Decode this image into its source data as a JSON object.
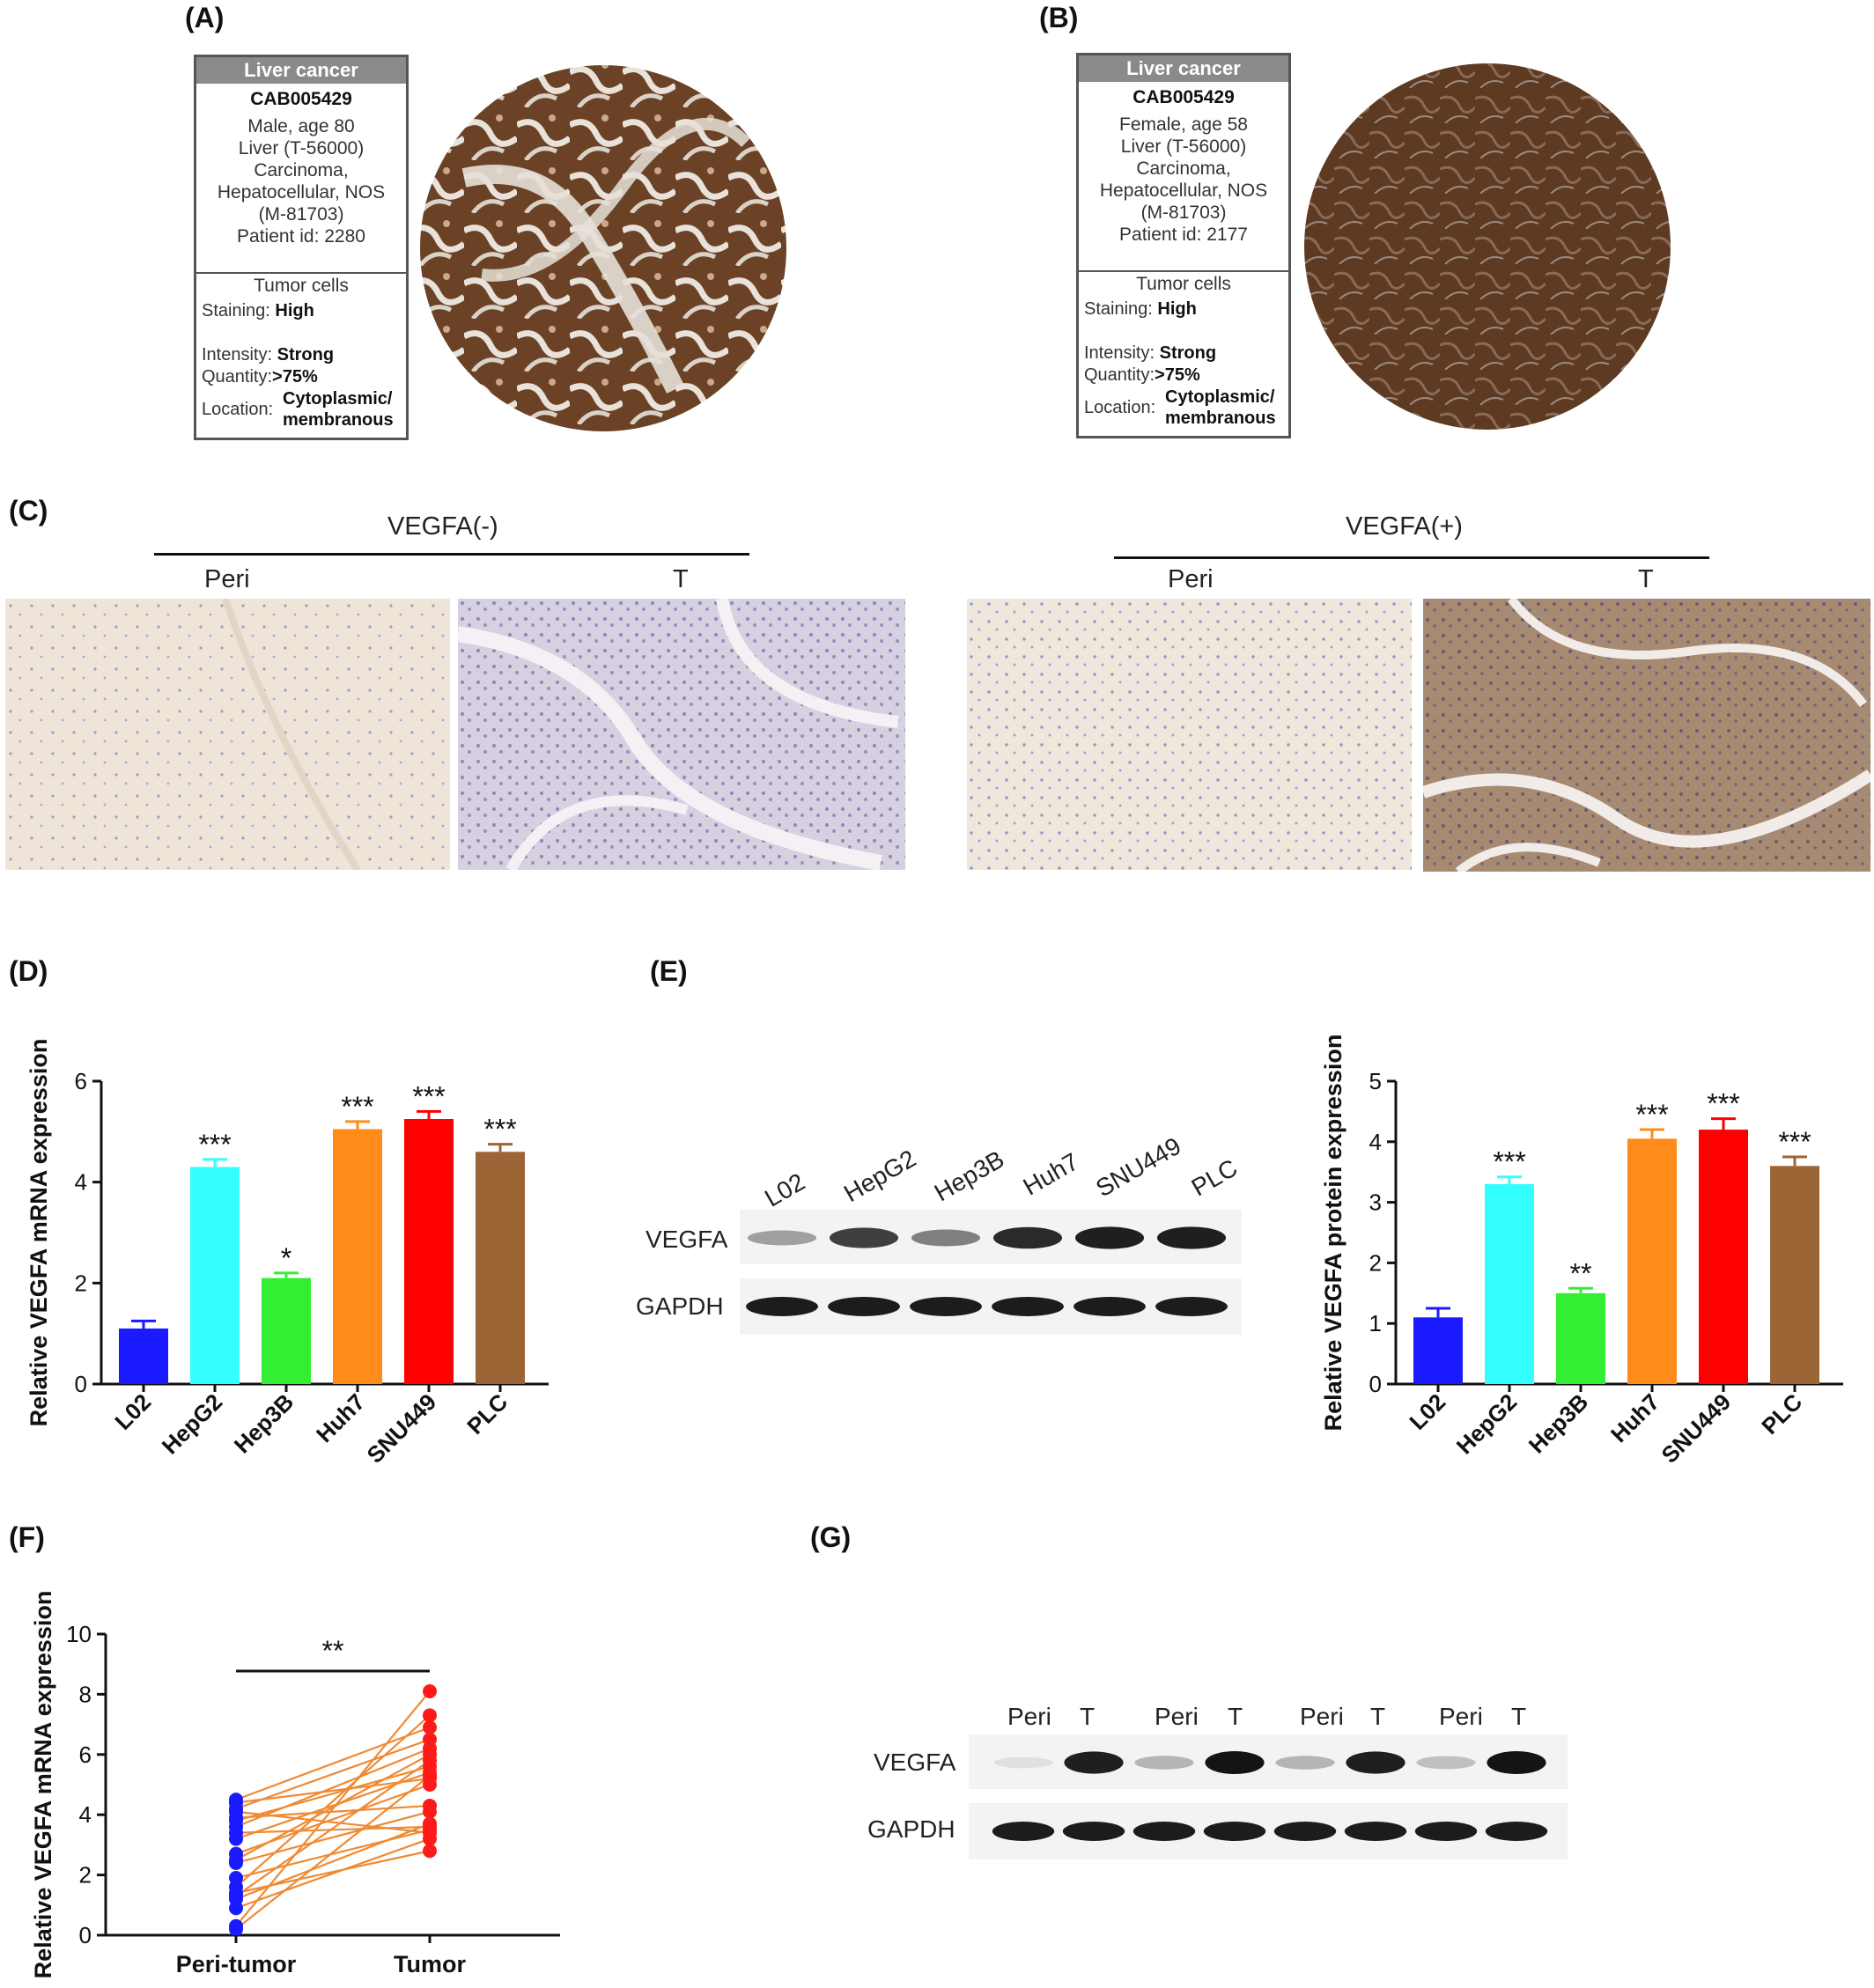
{
  "panels": {
    "A": "(A)",
    "B": "(B)",
    "C": "(C)",
    "D": "(D)",
    "E": "(E)",
    "F": "(F)",
    "G": "(G)"
  },
  "hpa_cards": [
    {
      "header": "Liver cancer",
      "antibody": "CAB005429",
      "lines": [
        "Male, age 80",
        "Liver (T-56000)",
        "Carcinoma,",
        "Hepatocellular, NOS",
        "(M-81703)",
        "Patient id: 2280"
      ],
      "subheader": "Tumor cells",
      "staining_label": "Staining:",
      "staining_value": "High",
      "intensity_label": "Intensity:",
      "intensity_value": "Strong",
      "quantity_label": "Quantity:",
      "quantity_value": ">75%",
      "location_label": "Location:",
      "location_value_1": "Cytoplasmic/",
      "location_value_2": "membranous"
    },
    {
      "header": "Liver cancer",
      "antibody": "CAB005429",
      "lines": [
        "Female, age 58",
        "Liver (T-56000)",
        "Carcinoma,",
        "Hepatocellular, NOS",
        "(M-81703)",
        "Patient id: 2177"
      ],
      "subheader": "Tumor cells",
      "staining_label": "Staining:",
      "staining_value": "High",
      "intensity_label": "Intensity:",
      "intensity_value": "Strong",
      "quantity_label": "Quantity:",
      "quantity_value": ">75%",
      "location_label": "Location:",
      "location_value_1": "Cytoplasmic/",
      "location_value_2": "membranous"
    }
  ],
  "ihc": {
    "group_neg": "VEGFA(-)",
    "group_pos": "VEGFA(+)",
    "peri": "Peri",
    "t": "T"
  },
  "blot_e": {
    "lanes": [
      "L02",
      "HepG2",
      "Hep3B",
      "Huh7",
      "SNU449",
      "PLC"
    ],
    "row1": "VEGFA",
    "row2": "GAPDH",
    "band_intensity": [
      0.35,
      0.8,
      0.5,
      0.9,
      0.95,
      0.95
    ]
  },
  "blot_g": {
    "lanes": [
      "Peri",
      "T",
      "Peri",
      "T",
      "Peri",
      "T",
      "Peri",
      "T"
    ],
    "row1": "VEGFA",
    "row2": "GAPDH",
    "band_intensity": [
      0.05,
      0.95,
      0.25,
      1.0,
      0.25,
      0.95,
      0.2,
      1.0
    ]
  },
  "chart_data": [
    {
      "type": "bar",
      "ylabel": "Relative VEGFA mRNA expression",
      "categories": [
        "L02",
        "HepG2",
        "Hep3B",
        "Huh7",
        "SNU449",
        "PLC"
      ],
      "values": [
        1.1,
        4.3,
        2.1,
        5.05,
        5.25,
        4.6
      ],
      "errors": [
        0.15,
        0.15,
        0.1,
        0.15,
        0.15,
        0.15
      ],
      "significance": [
        "",
        "***",
        "*",
        "***",
        "***",
        "***"
      ],
      "colors": [
        "#1a1aff",
        "#33ffff",
        "#33ee33",
        "#ff8c1a",
        "#ff0000",
        "#9c6535"
      ],
      "ylim": [
        0,
        6
      ],
      "yticks": [
        "0",
        "2",
        "4",
        "6"
      ]
    },
    {
      "type": "bar",
      "ylabel": "Relative VEGFA protein expression",
      "categories": [
        "L02",
        "HepG2",
        "Hep3B",
        "Huh7",
        "SNU449",
        "PLC"
      ],
      "values": [
        1.1,
        3.3,
        1.5,
        4.05,
        4.2,
        3.6
      ],
      "errors": [
        0.15,
        0.12,
        0.08,
        0.15,
        0.18,
        0.15
      ],
      "significance": [
        "",
        "***",
        "**",
        "***",
        "***",
        "***"
      ],
      "colors": [
        "#1a1aff",
        "#33ffff",
        "#33ee33",
        "#ff8c1a",
        "#ff0000",
        "#9c6535"
      ],
      "ylim": [
        0,
        5
      ],
      "yticks": [
        "0",
        "1",
        "2",
        "3",
        "4",
        "5"
      ]
    },
    {
      "type": "scatter",
      "ylabel": "Relative VEGFA mRNA expression",
      "categories": [
        "Peri-tumor",
        "Tumor"
      ],
      "significance": "**",
      "ylim": [
        0,
        10
      ],
      "yticks": [
        "0",
        "2",
        "4",
        "6",
        "8",
        "10"
      ],
      "peri_color": "#1a1aff",
      "tumor_color": "#ff1a1a",
      "line_color": "#f08a33",
      "pairs": [
        [
          4.5,
          6.9
        ],
        [
          4.4,
          5.2
        ],
        [
          4.2,
          6.5
        ],
        [
          4.1,
          3.4
        ],
        [
          3.9,
          4.3
        ],
        [
          3.8,
          5.6
        ],
        [
          3.6,
          6.2
        ],
        [
          3.4,
          3.6
        ],
        [
          3.2,
          5.4
        ],
        [
          2.7,
          5.0
        ],
        [
          2.5,
          6.0
        ],
        [
          2.4,
          4.1
        ],
        [
          1.9,
          3.5
        ],
        [
          1.6,
          7.3
        ],
        [
          1.4,
          2.8
        ],
        [
          1.3,
          5.8
        ],
        [
          1.2,
          3.7
        ],
        [
          0.9,
          3.2
        ],
        [
          0.3,
          8.1
        ],
        [
          0.2,
          5.3
        ]
      ]
    }
  ]
}
